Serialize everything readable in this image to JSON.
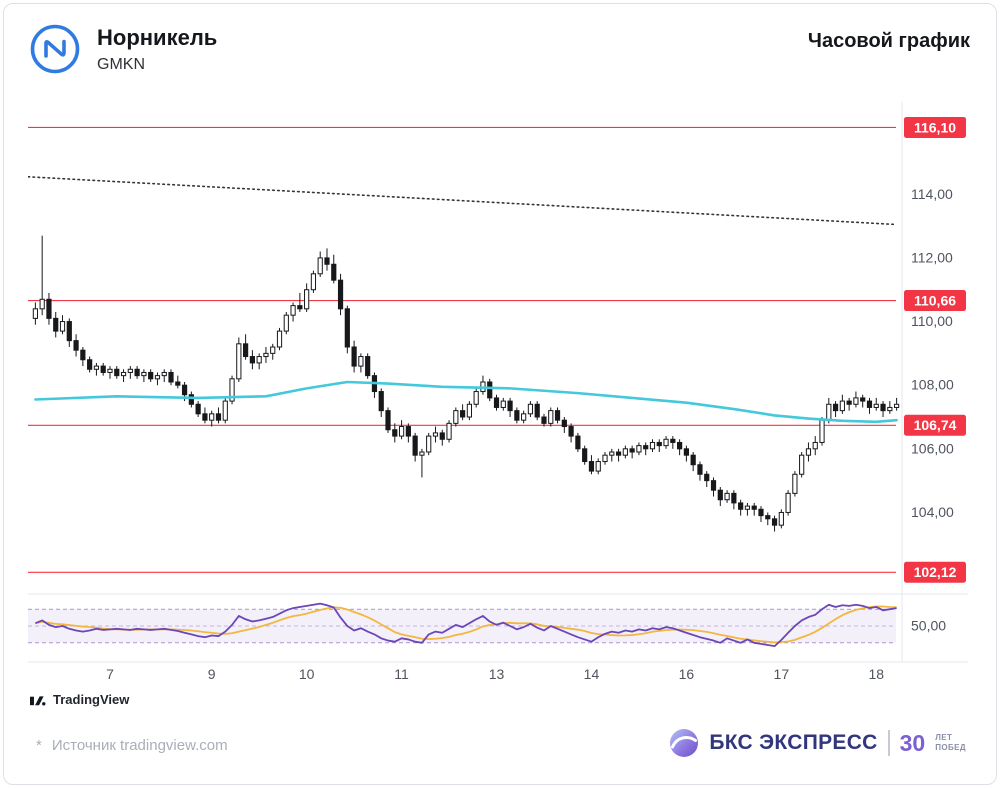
{
  "header": {
    "title": "Норникель",
    "ticker": "GMKN",
    "timeframe": "Часовой график"
  },
  "watermark": {
    "label": "TradingView"
  },
  "footer": {
    "source_star": "*",
    "source_text": "Источник tradingview.com",
    "brand_name": "БКС ЭКСПРЕСС",
    "anniversary_number": "30",
    "anniversary_line1": "ЛЕТ",
    "anniversary_line2": "ПОБЕД"
  },
  "chart_data": {
    "type": "candlestick",
    "title": "Норникель (GMKN) — часовой график",
    "price_range": [
      101.5,
      116.9
    ],
    "y_ticks": [
      {
        "value": 114,
        "label": "114,00"
      },
      {
        "value": 112,
        "label": "112,00"
      },
      {
        "value": 110,
        "label": "110,00"
      },
      {
        "value": 108,
        "label": "108,00"
      },
      {
        "value": 106,
        "label": "106,00"
      },
      {
        "value": 104,
        "label": "104,00"
      }
    ],
    "levels": [
      {
        "value": 116.1,
        "label": "116,10"
      },
      {
        "value": 110.66,
        "label": "110,66"
      },
      {
        "value": 106.74,
        "label": "106,74"
      },
      {
        "value": 102.12,
        "label": "102,12"
      }
    ],
    "x_ticks": [
      {
        "index": 11,
        "label": "7"
      },
      {
        "index": 26,
        "label": "9"
      },
      {
        "index": 40,
        "label": "10"
      },
      {
        "index": 54,
        "label": "11"
      },
      {
        "index": 68,
        "label": "13"
      },
      {
        "index": 82,
        "label": "14"
      },
      {
        "index": 96,
        "label": "16"
      },
      {
        "index": 110,
        "label": "17"
      },
      {
        "index": 124,
        "label": "18"
      }
    ],
    "trendline": {
      "style": "dotted",
      "from": 114.55,
      "to": 113.05
    },
    "ma": {
      "color": "#44c8dc",
      "points": [
        [
          0,
          107.55
        ],
        [
          12,
          107.65
        ],
        [
          24,
          107.6
        ],
        [
          34,
          107.65
        ],
        [
          40,
          107.9
        ],
        [
          46,
          108.1
        ],
        [
          52,
          108.05
        ],
        [
          60,
          107.95
        ],
        [
          70,
          107.9
        ],
        [
          80,
          107.75
        ],
        [
          88,
          107.6
        ],
        [
          96,
          107.45
        ],
        [
          103,
          107.25
        ],
        [
          109,
          107.05
        ],
        [
          114,
          106.95
        ],
        [
          119,
          106.88
        ],
        [
          124,
          106.85
        ],
        [
          127,
          106.9
        ]
      ]
    },
    "candles": [
      [
        110.1,
        110.6,
        109.9,
        110.4
      ],
      [
        110.4,
        112.7,
        110.2,
        110.7
      ],
      [
        110.7,
        110.9,
        109.9,
        110.1
      ],
      [
        110.1,
        110.3,
        109.5,
        109.7
      ],
      [
        109.7,
        110.2,
        109.6,
        110.0
      ],
      [
        110.0,
        110.1,
        109.2,
        109.4
      ],
      [
        109.4,
        109.6,
        108.9,
        109.1
      ],
      [
        109.1,
        109.2,
        108.6,
        108.8
      ],
      [
        108.8,
        108.9,
        108.4,
        108.5
      ],
      [
        108.5,
        108.7,
        108.3,
        108.6
      ],
      [
        108.6,
        108.7,
        108.3,
        108.4
      ],
      [
        108.4,
        108.6,
        108.2,
        108.5
      ],
      [
        108.5,
        108.6,
        108.2,
        108.3
      ],
      [
        108.3,
        108.5,
        108.1,
        108.4
      ],
      [
        108.4,
        108.6,
        108.2,
        108.5
      ],
      [
        108.5,
        108.6,
        108.2,
        108.3
      ],
      [
        108.3,
        108.5,
        108.1,
        108.4
      ],
      [
        108.4,
        108.5,
        108.1,
        108.2
      ],
      [
        108.2,
        108.4,
        108.0,
        108.3
      ],
      [
        108.3,
        108.5,
        108.1,
        108.4
      ],
      [
        108.4,
        108.5,
        108.0,
        108.1
      ],
      [
        108.1,
        108.3,
        107.9,
        108.0
      ],
      [
        108.0,
        108.1,
        107.5,
        107.7
      ],
      [
        107.7,
        107.8,
        107.3,
        107.4
      ],
      [
        107.4,
        107.5,
        107.0,
        107.1
      ],
      [
        107.1,
        107.3,
        106.8,
        106.9
      ],
      [
        106.9,
        107.2,
        106.7,
        107.1
      ],
      [
        107.1,
        107.3,
        106.8,
        106.9
      ],
      [
        106.9,
        107.6,
        106.8,
        107.5
      ],
      [
        107.5,
        108.3,
        107.4,
        108.2
      ],
      [
        108.2,
        109.5,
        108.1,
        109.3
      ],
      [
        109.3,
        109.6,
        108.8,
        108.9
      ],
      [
        108.9,
        109.1,
        108.5,
        108.7
      ],
      [
        108.7,
        109.0,
        108.5,
        108.9
      ],
      [
        108.9,
        109.2,
        108.7,
        109.0
      ],
      [
        109.0,
        109.3,
        108.8,
        109.2
      ],
      [
        109.2,
        109.8,
        109.1,
        109.7
      ],
      [
        109.7,
        110.3,
        109.6,
        110.2
      ],
      [
        110.2,
        110.6,
        110.0,
        110.5
      ],
      [
        110.5,
        110.9,
        110.3,
        110.4
      ],
      [
        110.4,
        111.2,
        110.3,
        111.0
      ],
      [
        111.0,
        111.6,
        110.9,
        111.5
      ],
      [
        111.5,
        112.2,
        111.4,
        112.0
      ],
      [
        112.0,
        112.3,
        111.6,
        111.8
      ],
      [
        111.8,
        112.1,
        111.2,
        111.3
      ],
      [
        111.3,
        111.5,
        110.2,
        110.4
      ],
      [
        110.4,
        110.5,
        109.0,
        109.2
      ],
      [
        109.2,
        109.4,
        108.4,
        108.6
      ],
      [
        108.6,
        109.0,
        108.4,
        108.9
      ],
      [
        108.9,
        109.0,
        108.2,
        108.3
      ],
      [
        108.3,
        108.4,
        107.6,
        107.8
      ],
      [
        107.8,
        107.9,
        107.0,
        107.2
      ],
      [
        107.2,
        107.3,
        106.5,
        106.6
      ],
      [
        106.6,
        106.8,
        106.2,
        106.4
      ],
      [
        106.4,
        106.9,
        106.3,
        106.7
      ],
      [
        106.7,
        106.8,
        106.2,
        106.4
      ],
      [
        106.4,
        106.5,
        105.6,
        105.8
      ],
      [
        105.8,
        106.0,
        105.1,
        105.9
      ],
      [
        105.9,
        106.5,
        105.8,
        106.4
      ],
      [
        106.4,
        106.7,
        106.2,
        106.5
      ],
      [
        106.5,
        106.6,
        106.1,
        106.3
      ],
      [
        106.3,
        106.9,
        106.2,
        106.8
      ],
      [
        106.8,
        107.3,
        106.7,
        107.2
      ],
      [
        107.2,
        107.4,
        106.9,
        107.0
      ],
      [
        107.0,
        107.5,
        106.9,
        107.4
      ],
      [
        107.4,
        107.9,
        107.3,
        107.8
      ],
      [
        107.8,
        108.3,
        107.7,
        108.1
      ],
      [
        108.1,
        108.2,
        107.5,
        107.6
      ],
      [
        107.6,
        107.7,
        107.2,
        107.3
      ],
      [
        107.3,
        107.6,
        107.2,
        107.5
      ],
      [
        107.5,
        107.6,
        107.0,
        107.2
      ],
      [
        107.2,
        107.3,
        106.8,
        106.9
      ],
      [
        106.9,
        107.2,
        106.8,
        107.1
      ],
      [
        107.1,
        107.5,
        107.0,
        107.4
      ],
      [
        107.4,
        107.5,
        106.9,
        107.0
      ],
      [
        107.0,
        107.1,
        106.7,
        106.8
      ],
      [
        106.8,
        107.3,
        106.7,
        107.2
      ],
      [
        107.2,
        107.3,
        106.8,
        106.9
      ],
      [
        106.9,
        107.0,
        106.5,
        106.7
      ],
      [
        106.7,
        106.8,
        106.2,
        106.4
      ],
      [
        106.4,
        106.5,
        105.9,
        106.0
      ],
      [
        106.0,
        106.1,
        105.5,
        105.6
      ],
      [
        105.6,
        105.8,
        105.2,
        105.3
      ],
      [
        105.3,
        105.7,
        105.2,
        105.6
      ],
      [
        105.6,
        105.9,
        105.5,
        105.8
      ],
      [
        105.8,
        106.0,
        105.6,
        105.9
      ],
      [
        105.9,
        106.0,
        105.6,
        105.8
      ],
      [
        105.8,
        106.1,
        105.7,
        106.0
      ],
      [
        106.0,
        106.1,
        105.7,
        105.9
      ],
      [
        105.9,
        106.2,
        105.8,
        106.1
      ],
      [
        106.1,
        106.2,
        105.8,
        106.0
      ],
      [
        106.0,
        106.3,
        105.9,
        106.2
      ],
      [
        106.2,
        106.3,
        105.9,
        106.1
      ],
      [
        106.1,
        106.4,
        106.0,
        106.3
      ],
      [
        106.3,
        106.4,
        106.0,
        106.2
      ],
      [
        106.2,
        106.3,
        105.8,
        106.0
      ],
      [
        106.0,
        106.1,
        105.6,
        105.8
      ],
      [
        105.8,
        105.9,
        105.3,
        105.5
      ],
      [
        105.5,
        105.6,
        105.0,
        105.2
      ],
      [
        105.2,
        105.3,
        104.8,
        105.0
      ],
      [
        105.0,
        105.1,
        104.5,
        104.7
      ],
      [
        104.7,
        104.8,
        104.2,
        104.4
      ],
      [
        104.4,
        104.7,
        104.3,
        104.6
      ],
      [
        104.6,
        104.7,
        104.1,
        104.3
      ],
      [
        104.3,
        104.4,
        103.9,
        104.1
      ],
      [
        104.1,
        104.3,
        103.9,
        104.2
      ],
      [
        104.2,
        104.3,
        103.9,
        104.1
      ],
      [
        104.1,
        104.2,
        103.7,
        103.9
      ],
      [
        103.9,
        104.0,
        103.6,
        103.8
      ],
      [
        103.8,
        103.9,
        103.4,
        103.6
      ],
      [
        103.6,
        104.1,
        103.5,
        104.0
      ],
      [
        104.0,
        104.7,
        103.9,
        104.6
      ],
      [
        104.6,
        105.3,
        104.5,
        105.2
      ],
      [
        105.2,
        105.9,
        105.1,
        105.8
      ],
      [
        105.8,
        106.2,
        105.6,
        106.0
      ],
      [
        106.0,
        106.4,
        105.8,
        106.2
      ],
      [
        106.2,
        107.0,
        106.1,
        106.9
      ],
      [
        106.9,
        107.6,
        106.8,
        107.4
      ],
      [
        107.4,
        107.5,
        107.0,
        107.2
      ],
      [
        107.2,
        107.7,
        107.1,
        107.5
      ],
      [
        107.5,
        107.6,
        107.2,
        107.4
      ],
      [
        107.4,
        107.8,
        107.3,
        107.6
      ],
      [
        107.6,
        107.7,
        107.3,
        107.5
      ],
      [
        107.5,
        107.6,
        107.1,
        107.3
      ],
      [
        107.3,
        107.6,
        107.2,
        107.4
      ],
      [
        107.4,
        107.5,
        107.0,
        107.2
      ],
      [
        107.2,
        107.5,
        107.1,
        107.3
      ],
      [
        107.3,
        107.6,
        107.2,
        107.4
      ]
    ],
    "oscillator": {
      "name": "momentum-oscillator",
      "label": "50,00",
      "range": [
        0,
        100
      ],
      "upper": 80,
      "mid": 50,
      "lower": 20,
      "signal_period": 9,
      "colors": {
        "k": "#6b46b8",
        "signal": "#f3b73f",
        "band": "#8e6cc8"
      },
      "k_values": [
        55,
        60,
        52,
        48,
        50,
        45,
        42,
        40,
        42,
        45,
        43,
        44,
        45,
        44,
        43,
        45,
        44,
        43,
        44,
        45,
        43,
        41,
        38,
        35,
        32,
        30,
        33,
        32,
        40,
        52,
        68,
        62,
        58,
        60,
        63,
        66,
        72,
        78,
        82,
        84,
        86,
        88,
        90,
        87,
        83,
        65,
        50,
        42,
        46,
        40,
        35,
        28,
        24,
        22,
        28,
        26,
        22,
        20,
        35,
        40,
        38,
        45,
        52,
        48,
        55,
        62,
        68,
        58,
        52,
        56,
        50,
        44,
        48,
        54,
        47,
        42,
        50,
        45,
        40,
        35,
        30,
        26,
        22,
        30,
        36,
        40,
        38,
        42,
        40,
        44,
        42,
        46,
        44,
        48,
        46,
        42,
        38,
        34,
        30,
        27,
        24,
        20,
        28,
        24,
        20,
        26,
        20,
        18,
        16,
        14,
        25,
        38,
        50,
        60,
        66,
        70,
        80,
        88,
        84,
        87,
        86,
        88,
        86,
        82,
        84,
        78,
        80,
        82
      ]
    },
    "colors": {
      "up": "#ffffff",
      "down": "#17181b",
      "level": "#f23645",
      "label_text": "#ffffff",
      "axis_text": "#4f545e",
      "trendline": "#35363a",
      "separator": "#e4e7ee"
    }
  }
}
